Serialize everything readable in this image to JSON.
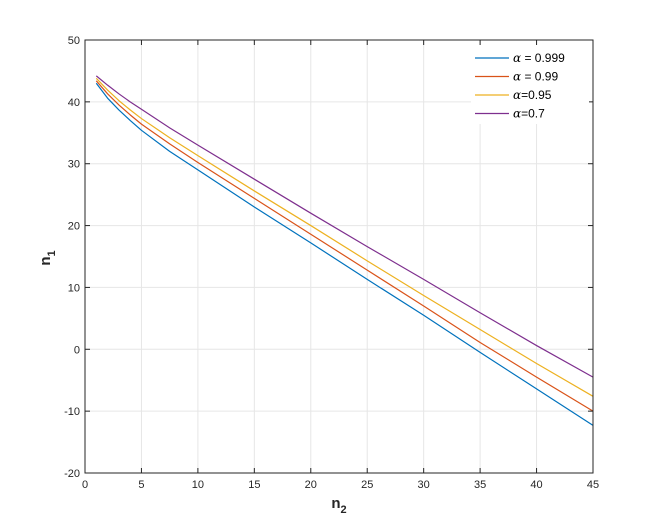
{
  "chart_data": {
    "type": "line",
    "title": "",
    "xlabel": "n",
    "xlabel_sub": "2",
    "ylabel": "n",
    "ylabel_sub": "1",
    "xlim": [
      0,
      45
    ],
    "ylim": [
      -20,
      50
    ],
    "xticks": [
      0,
      5,
      10,
      15,
      20,
      25,
      30,
      35,
      40,
      45
    ],
    "yticks": [
      -20,
      -10,
      0,
      10,
      20,
      30,
      40,
      50
    ],
    "grid": true,
    "legend_position": "top-right",
    "x": [
      1,
      2,
      3,
      4,
      5,
      7.5,
      10,
      15,
      20,
      25,
      30,
      35,
      40,
      45
    ],
    "series": [
      {
        "name": "α = 0.999",
        "legend_symbol": "α",
        "legend_text": " = 0.999",
        "color": "#0072BD",
        "values": [
          43.0,
          40.6,
          38.7,
          37.0,
          35.4,
          32.0,
          29.0,
          23.0,
          17.2,
          11.3,
          5.5,
          -0.5,
          -6.4,
          -12.3
        ]
      },
      {
        "name": "α = 0.99",
        "legend_symbol": "α",
        "legend_text": " = 0.99",
        "color": "#D95319",
        "values": [
          43.4,
          41.3,
          39.5,
          37.9,
          36.4,
          33.2,
          30.2,
          24.4,
          18.6,
          12.8,
          7.0,
          1.1,
          -4.5,
          -10.0
        ]
      },
      {
        "name": "α=0.95",
        "legend_symbol": "α",
        "legend_text": "=0.95",
        "color": "#EDB120",
        "values": [
          43.8,
          41.9,
          40.2,
          38.7,
          37.3,
          34.2,
          31.3,
          25.6,
          20.0,
          14.3,
          8.7,
          3.2,
          -2.3,
          -7.6
        ]
      },
      {
        "name": "α=0.7",
        "legend_symbol": "α",
        "legend_text": "=0.7",
        "color": "#7E2F8E",
        "values": [
          44.2,
          42.7,
          41.3,
          40.0,
          38.8,
          35.8,
          33.0,
          27.5,
          22.0,
          16.6,
          11.3,
          5.9,
          0.6,
          -4.5
        ]
      }
    ]
  }
}
